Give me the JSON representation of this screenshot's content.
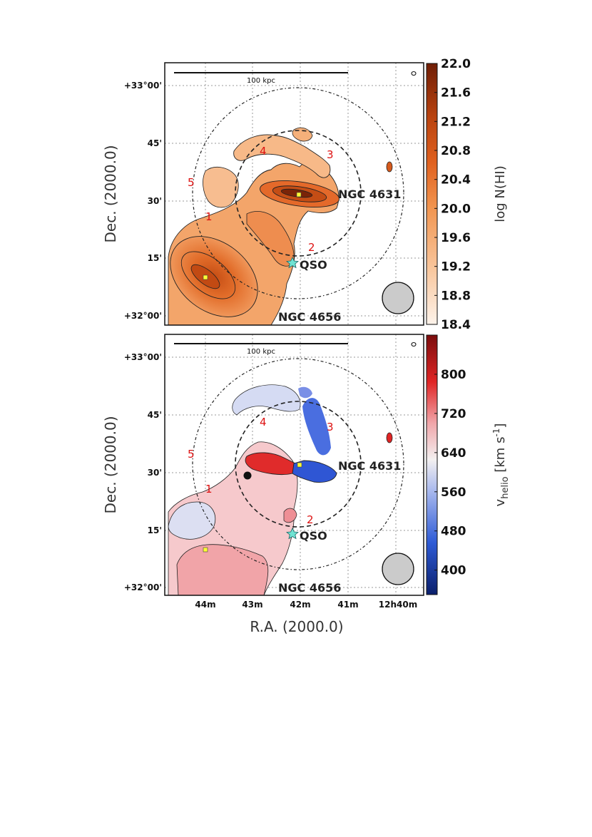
{
  "chart_data": [
    {
      "type": "heatmap",
      "quantity": "HI column density",
      "colorbar_label": "log N(HI)",
      "colorbar_ticks": [
        "22.0",
        "21.6",
        "21.2",
        "20.8",
        "20.4",
        "20.0",
        "19.6",
        "19.2",
        "18.8",
        "18.4"
      ],
      "colorbar_range": [
        18.4,
        22.0
      ],
      "colormap": [
        "#fdf3ea",
        "#f9c9a1",
        "#f1944f",
        "#e0611f",
        "#b8420f",
        "#6f1e06"
      ],
      "ylabel": "Dec. (2000.0)",
      "yticks": [
        "+33°00'",
        "45'",
        "30'",
        "15'",
        "+32°00'"
      ],
      "scalebar_label": "100 kpc",
      "galaxies": [
        "NGC 4631",
        "NGC 4656"
      ],
      "qso_label": "QSO",
      "regions": [
        "1",
        "2",
        "3",
        "4",
        "5"
      ]
    },
    {
      "type": "heatmap",
      "quantity": "heliocentric velocity",
      "colorbar_label": "v_helio [km s^-1]",
      "colorbar_label_main": "v",
      "colorbar_label_sub": "helio",
      "colorbar_label_units": " [km s",
      "colorbar_label_sup": "-1",
      "colorbar_label_end": "]",
      "colorbar_ticks": [
        "800",
        "720",
        "640",
        "560",
        "480",
        "400"
      ],
      "colorbar_range": [
        350,
        880
      ],
      "colormap": [
        "#0b1f6b",
        "#2e5bd6",
        "#a9b9ee",
        "#f3f0f0",
        "#f0a6aa",
        "#e02525",
        "#7b0d0d"
      ],
      "ylabel": "Dec. (2000.0)",
      "xlabel": "R.A. (2000.0)",
      "yticks": [
        "+33°00'",
        "45'",
        "30'",
        "15'",
        "+32°00'"
      ],
      "xticks": [
        "44m",
        "43m",
        "42m",
        "41m",
        "12h40m"
      ],
      "scalebar_label": "100 kpc",
      "galaxies": [
        "NGC 4631",
        "NGC 4656"
      ],
      "qso_label": "QSO",
      "regions": [
        "1",
        "2",
        "3",
        "4",
        "5"
      ]
    }
  ]
}
